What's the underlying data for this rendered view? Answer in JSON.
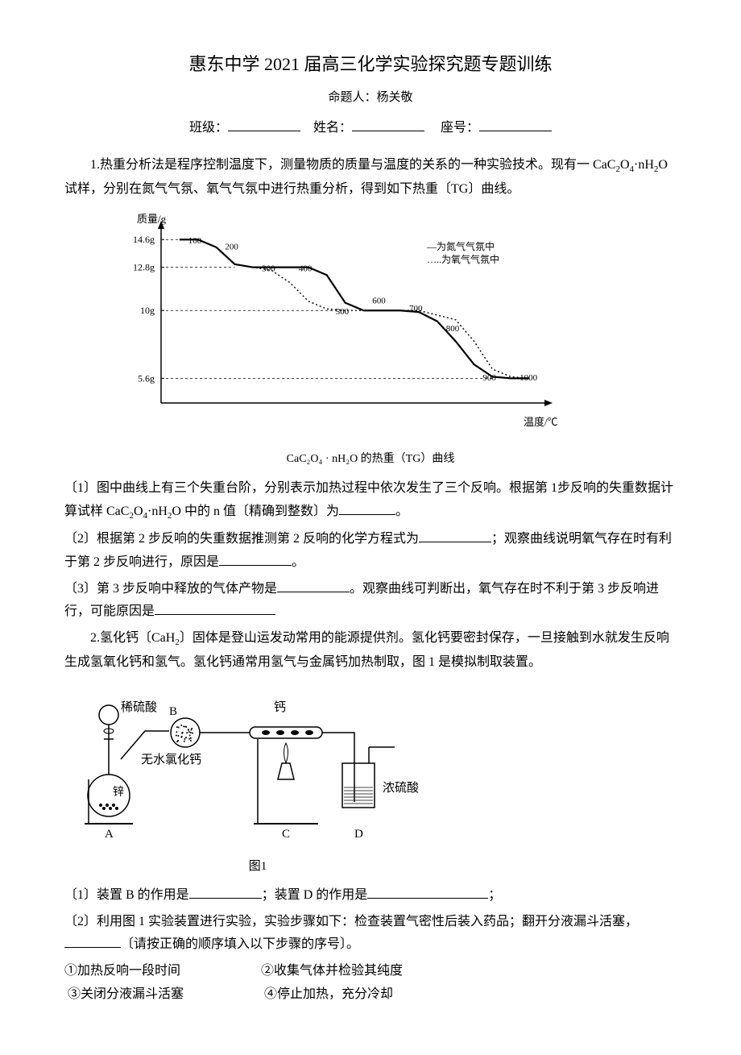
{
  "header": {
    "title": "惠东中学 2021 届高三化学实验探究题专题训练",
    "subtitle": "命题人：杨关敬",
    "class_label": "班级：",
    "name_label": "姓名：",
    "seat_label": "座号："
  },
  "q1": {
    "intro_a": "1.热重分析法是程序控制温度下，测量物质的质量与温度的关系的一种实验技术。现有一 CaC",
    "intro_b": "O",
    "intro_c": "·nH",
    "intro_d": "O 试样，分别在氮气气氛、氧气气氛中进行热重分析，得到如下热重〔TG〕曲线。",
    "chart": {
      "y_label": "质量/g",
      "x_label": "温度/℃",
      "y_ticks": [
        "14.6g",
        "12.8g",
        "10g",
        "5.6g"
      ],
      "y_vals": [
        14.6,
        12.8,
        10,
        5.6
      ],
      "x_ticks": [
        "100",
        "200",
        "300",
        "400",
        "500",
        "600",
        "700",
        "800",
        "900",
        "1000"
      ],
      "legend1": "—为氮气气氛中",
      "legend2": "…..为氧气气氛中",
      "caption": "CaC₂O₄ · nH₂O 的热重（TG）曲线",
      "axis_color": "#000000",
      "bg": "#ffffff"
    },
    "p1_a": "〔1〕图中曲线上有三个失重台阶，分别表示加热过程中依次发生了三个反响。根据第 1步反响的失重数据计算试样 CaC",
    "p1_b": "O",
    "p1_c": "·nH",
    "p1_d": "O 中的 n 值〔精确到整数〕为",
    "p1_e": "。",
    "p2_a": "〔2〕根据第 2 步反响的失重数据推测第 2 反响的化学方程式为",
    "p2_b": "；观察曲线说明氧气存在时有利于第 2 步反响进行，原因是",
    "p2_c": "。",
    "p3_a": "〔3〕第 3 步反响中释放的气体产物是",
    "p3_b": "。观察曲线可判断出，氧气存在时不利于第 3 步反响进行，可能原因是",
    "p3_c": ""
  },
  "q2": {
    "intro_a": "2.氢化钙〔CaH",
    "intro_b": "〕固体是登山运发动常用的能源提供剂。氢化钙要密封保存，一旦接触到水就发生反响生成氢氧化钙和氢气。氢化钙通常用氢气与金属钙加热制取，图 1 是模拟制取装置。",
    "diagram": {
      "label_xlsq": "稀硫酸",
      "label_B": "B",
      "label_wsclh": "无水氯化钙",
      "label_xin": "锌",
      "label_A": "A",
      "label_gai": "钙",
      "label_C": "C",
      "label_nlsq": "浓硫酸",
      "label_D": "D",
      "caption": "图1",
      "stroke": "#000000"
    },
    "p1_a": "〔1〕装置 B 的作用是",
    "p1_b": "；装置 D 的作用是",
    "p1_c": "；",
    "p2_a": "〔2〕利用图 1 实验装置进行实验，实验步骤如下：检查装置气密性后装入药品；翻开分液漏斗活塞，",
    "p2_b": "〔请按正确的顺序填入以下步骤的序号〕。",
    "opt1": "①加热反响一段时间",
    "opt2": "②收集气体并检验其纯度",
    "opt3": "③关闭分液漏斗活塞",
    "opt4": "④停止加热，充分冷却"
  }
}
